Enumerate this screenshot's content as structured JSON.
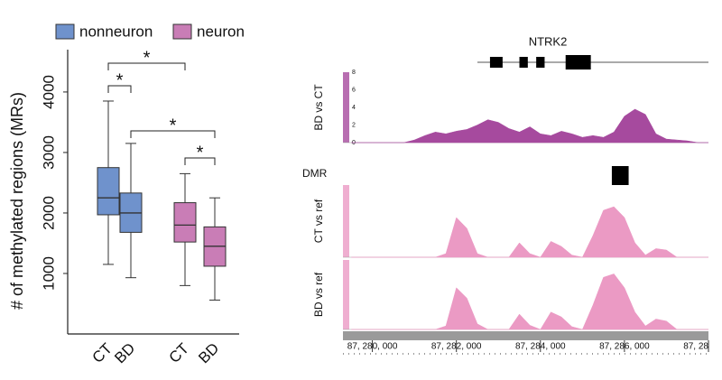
{
  "chart_data": [
    {
      "type": "box",
      "y_label": "# of methylated regions (MRs)",
      "categories": [
        "CT",
        "BD",
        "CT",
        "BD"
      ],
      "ylim": [
        0,
        4700
      ],
      "yticks": [
        1000,
        2000,
        3000,
        4000
      ],
      "series": [
        {
          "name": "nonneuron",
          "color": "#6f92cc",
          "values": [
            {
              "min": 1150,
              "q1": 1970,
              "median": 2250,
              "q3": 2750,
              "max": 3850
            },
            {
              "min": 930,
              "q1": 1680,
              "median": 2000,
              "q3": 2330,
              "max": 3150
            }
          ]
        },
        {
          "name": "neuron",
          "color": "#c97db6",
          "values": [
            {
              "min": 800,
              "q1": 1520,
              "median": 1800,
              "q3": 2170,
              "max": 2650
            },
            {
              "min": 560,
              "q1": 1120,
              "median": 1450,
              "q3": 1770,
              "max": 2250
            }
          ]
        }
      ],
      "annotations": [
        "*",
        "*",
        "*",
        "*"
      ]
    },
    {
      "type": "track",
      "xlim": [
        87279300,
        87288000
      ],
      "xticks": [
        {
          "value": 87280000,
          "label": "87, 280, 000"
        },
        {
          "value": 87282000,
          "label": "87, 282, 000"
        },
        {
          "value": 87284000,
          "label": "87, 284, 000"
        },
        {
          "value": 87286000,
          "label": "87, 286, 000"
        },
        {
          "value": 87288000,
          "label": "87, 28"
        }
      ],
      "gene": {
        "name": "NTRK2",
        "start": 87282500,
        "end": 87288000,
        "exons": [
          [
            87282800,
            87283100
          ],
          [
            87283500,
            87283700
          ],
          [
            87283900,
            87284100
          ],
          [
            87284600,
            87285200
          ]
        ]
      },
      "dmr": {
        "label": "DMR",
        "start": 87285700,
        "end": 87286100
      },
      "x": [
        87279500,
        87279750,
        87280000,
        87280250,
        87280500,
        87280750,
        87281000,
        87281250,
        87281500,
        87281750,
        87282000,
        87282250,
        87282500,
        87282750,
        87283000,
        87283250,
        87283500,
        87283750,
        87284000,
        87284250,
        87284500,
        87284750,
        87285000,
        87285250,
        87285500,
        87285750,
        87286000,
        87286250,
        87286500,
        87286750,
        87287000,
        87287250,
        87287500,
        87287750,
        87288000
      ],
      "tracks": [
        {
          "name": "BD vs CT",
          "color": "#a64a9e",
          "ylim": [
            0,
            8
          ],
          "yticks": [
            0,
            2,
            4,
            6,
            8
          ],
          "values": [
            0,
            0,
            0,
            0,
            0,
            0,
            0.3,
            0.8,
            1.2,
            1.0,
            1.3,
            1.5,
            2.0,
            2.6,
            2.3,
            1.6,
            1.2,
            1.8,
            1.0,
            0.8,
            1.3,
            1.0,
            0.6,
            0.8,
            0.6,
            1.2,
            3.0,
            3.8,
            3.2,
            1.0,
            0.4,
            0.3,
            0.2,
            0,
            0
          ]
        },
        {
          "name": "CT vs ref",
          "color": "#eb9ac4",
          "ylim": [
            0,
            100
          ],
          "values": [
            0,
            0,
            0,
            0,
            0,
            0,
            0,
            0,
            0,
            5,
            55,
            40,
            5,
            0,
            0,
            0,
            20,
            5,
            0,
            22,
            15,
            3,
            0,
            30,
            65,
            70,
            55,
            20,
            3,
            12,
            10,
            0,
            0,
            0,
            0
          ]
        },
        {
          "name": "BD vs ref",
          "color": "#eb9ac4",
          "ylim": [
            0,
            100
          ],
          "values": [
            0,
            0,
            0,
            0,
            0,
            0,
            0,
            0,
            0,
            5,
            60,
            45,
            8,
            0,
            0,
            0,
            22,
            6,
            0,
            25,
            18,
            4,
            0,
            35,
            75,
            80,
            60,
            25,
            5,
            15,
            12,
            0,
            0,
            0,
            0
          ]
        }
      ]
    }
  ]
}
